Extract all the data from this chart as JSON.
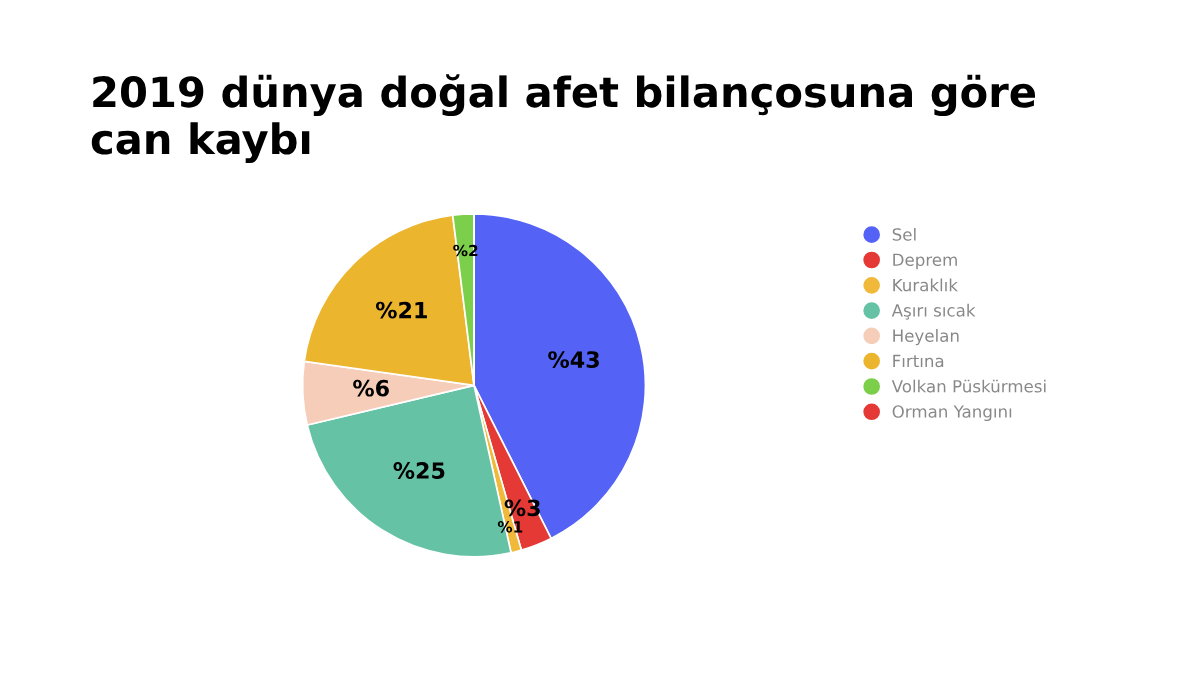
{
  "chart_data": {
    "type": "pie",
    "title": "2019 dünya doğal afet bilançosuna göre\ncan kaybı",
    "categories": [
      "Sel",
      "Deprem",
      "Kuraklık",
      "Aşırı sıcak",
      "Heyelan",
      "Fırtına",
      "Volkan Püskürmesi",
      "Orman Yangını"
    ],
    "values": [
      43,
      3,
      1,
      25,
      6,
      21,
      2,
      0
    ],
    "value_labels": [
      "%43",
      "%3",
      "%1",
      "%25",
      "%6",
      "%21",
      "%2",
      null
    ],
    "colors": [
      "#5463f6",
      "#e53935",
      "#f0b93a",
      "#66c2a5",
      "#f6cdb8",
      "#ecb52e",
      "#7ccf4a",
      "#e53935"
    ],
    "legend": "right"
  }
}
